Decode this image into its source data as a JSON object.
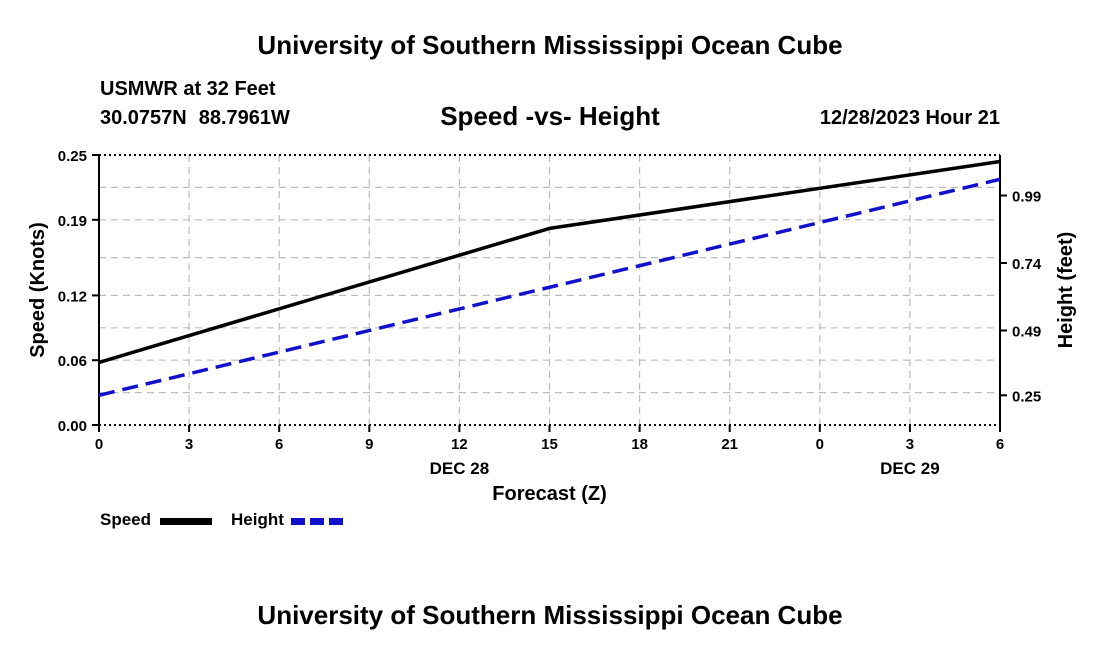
{
  "header": {
    "title": "University of Southern Mississippi Ocean Cube",
    "station": "USMWR at 32 Feet",
    "lat": "30.0757N",
    "lon": "88.7961W",
    "subtitle": "Speed -vs- Height",
    "datetime": "12/28/2023 Hour 21"
  },
  "footer": {
    "title": "University of Southern Mississippi Ocean Cube"
  },
  "legend": {
    "speed_label": "Speed",
    "height_label": "Height"
  },
  "colors": {
    "speed": "#000000",
    "height": "#1111cc",
    "grid": "#bbbbbb"
  },
  "chart_data": {
    "type": "line",
    "title": "Speed -vs- Height",
    "xlabel": "Forecast (Z)",
    "ylabel_left": "Speed (Knots)",
    "ylabel_right": "Height (feet)",
    "x": [
      0,
      3,
      6,
      9,
      12,
      15,
      18,
      21,
      24,
      27,
      30
    ],
    "x_tick_labels": [
      "0",
      "3",
      "6",
      "9",
      "12",
      "15",
      "18",
      "21",
      "0",
      "3",
      "6"
    ],
    "date_labels": [
      {
        "x": 12,
        "label": "DEC 28"
      },
      {
        "x": 27,
        "label": "DEC 29"
      }
    ],
    "xlim": [
      0,
      30
    ],
    "left_axis": {
      "ylim": [
        0,
        0.25
      ],
      "ticks": [
        0,
        0.06,
        0.12,
        0.19,
        0.25
      ],
      "tick_labels": [
        "0.00",
        "0.06",
        "0.12",
        "0.19",
        "0.25"
      ]
    },
    "right_axis": {
      "ylim": [
        0.14,
        1.14
      ],
      "ticks": [
        0.25,
        0.49,
        0.74,
        0.99
      ],
      "tick_labels": [
        "0.25",
        "0.49",
        "0.74",
        "0.99"
      ]
    },
    "grid": true,
    "series": [
      {
        "name": "Speed",
        "axis": "left",
        "style": "solid",
        "x": [
          0,
          15,
          30
        ],
        "values": [
          0.058,
          0.182,
          0.244
        ]
      },
      {
        "name": "Height",
        "axis": "right",
        "style": "dashed",
        "x": [
          0,
          30
        ],
        "values": [
          0.25,
          1.05
        ]
      }
    ]
  }
}
